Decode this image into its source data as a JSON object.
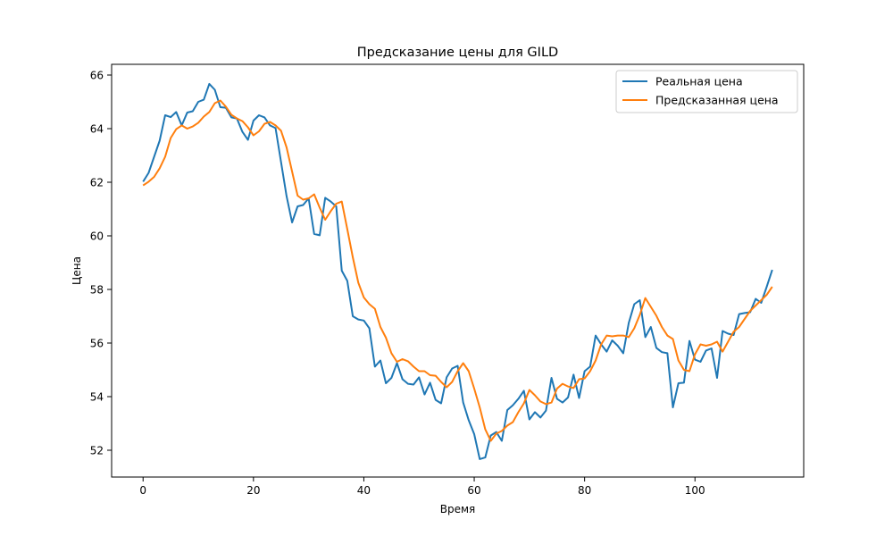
{
  "chart_data": {
    "type": "line",
    "title": "Предсказание цены для GILD",
    "xlabel": "Время",
    "ylabel": "Цена",
    "xlim": [
      -5.7,
      119.7
    ],
    "ylim": [
      51.0,
      66.4
    ],
    "x_ticks": [
      0,
      20,
      40,
      60,
      80,
      100
    ],
    "y_ticks": [
      52,
      54,
      56,
      58,
      60,
      62,
      64,
      66
    ],
    "grid": false,
    "legend_position": "top-right",
    "series": [
      {
        "name": "Реальная цена",
        "color": "#1f77b4",
        "values": [
          62.02,
          62.35,
          62.95,
          63.55,
          64.5,
          64.43,
          64.62,
          64.12,
          64.6,
          64.65,
          65.0,
          65.08,
          65.67,
          65.45,
          64.8,
          64.78,
          64.42,
          64.38,
          63.88,
          63.58,
          64.3,
          64.5,
          64.42,
          64.12,
          64.02,
          62.75,
          61.48,
          60.5,
          61.1,
          61.15,
          61.4,
          60.07,
          60.02,
          61.42,
          61.28,
          61.1,
          58.7,
          58.32,
          57.0,
          56.88,
          56.84,
          56.55,
          55.12,
          55.35,
          54.5,
          54.7,
          55.25,
          54.65,
          54.48,
          54.45,
          54.72,
          54.08,
          54.52,
          53.88,
          53.75,
          54.72,
          55.05,
          55.15,
          53.78,
          53.12,
          52.6,
          51.67,
          51.73,
          52.55,
          52.68,
          52.35,
          53.5,
          53.68,
          53.92,
          54.22,
          53.15,
          53.42,
          53.22,
          53.48,
          54.7,
          53.92,
          53.78,
          53.97,
          54.82,
          53.95,
          54.95,
          55.12,
          56.28,
          55.95,
          55.68,
          56.1,
          55.9,
          55.62,
          56.75,
          57.45,
          57.6,
          56.22,
          56.6,
          55.82,
          55.66,
          55.62,
          53.6,
          54.5,
          54.52,
          56.08,
          55.38,
          55.3,
          55.72,
          55.8,
          54.7,
          56.45,
          56.35,
          56.3,
          57.08,
          57.12,
          57.15,
          57.65,
          57.5,
          58.1,
          58.73
        ]
      },
      {
        "name": "Предсказанная цена",
        "color": "#ff7f0e",
        "values": [
          61.88,
          62.02,
          62.2,
          62.52,
          62.95,
          63.65,
          63.98,
          64.12,
          64.0,
          64.08,
          64.22,
          64.45,
          64.62,
          64.95,
          65.05,
          64.82,
          64.52,
          64.38,
          64.28,
          64.05,
          63.75,
          63.9,
          64.18,
          64.25,
          64.12,
          63.92,
          63.3,
          62.4,
          61.5,
          61.35,
          61.4,
          61.55,
          61.05,
          60.6,
          60.92,
          61.2,
          61.28,
          60.25,
          59.2,
          58.25,
          57.7,
          57.45,
          57.28,
          56.6,
          56.2,
          55.62,
          55.3,
          55.4,
          55.32,
          55.12,
          54.95,
          54.95,
          54.8,
          54.78,
          54.55,
          54.35,
          54.55,
          54.95,
          55.25,
          54.95,
          54.3,
          53.6,
          52.78,
          52.35,
          52.62,
          52.72,
          52.92,
          53.05,
          53.42,
          53.75,
          54.25,
          54.05,
          53.82,
          53.72,
          53.78,
          54.3,
          54.48,
          54.38,
          54.32,
          54.65,
          54.68,
          54.95,
          55.35,
          55.95,
          56.28,
          56.25,
          56.28,
          56.28,
          56.22,
          56.55,
          57.05,
          57.68,
          57.35,
          57.02,
          56.6,
          56.28,
          56.15,
          55.35,
          55.0,
          54.95,
          55.58,
          55.95,
          55.9,
          55.95,
          56.05,
          55.68,
          56.05,
          56.42,
          56.6,
          56.9,
          57.2,
          57.4,
          57.6,
          57.8,
          58.1
        ]
      }
    ]
  }
}
